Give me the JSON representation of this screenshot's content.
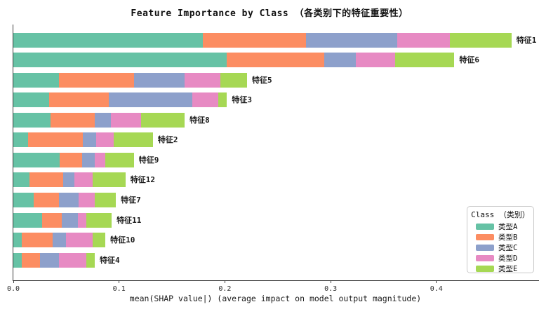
{
  "title": "Feature Importance by Class （各类别下的特征重要性）",
  "chart_data": {
    "type": "bar",
    "orientation": "horizontal",
    "stacked": true,
    "title": "Feature Importance by Class （各类别下的特征重要性）",
    "categories": [
      "特征1",
      "特征6",
      "特征5",
      "特征3",
      "特征8",
      "特征2",
      "特征9",
      "特征12",
      "特征7",
      "特征11",
      "特征10",
      "特征4"
    ],
    "series": [
      {
        "name": "类型A",
        "color": "#66c2a5",
        "values": [
          0.179,
          0.202,
          0.043,
          0.034,
          0.035,
          0.014,
          0.044,
          0.015,
          0.019,
          0.027,
          0.008,
          0.008
        ]
      },
      {
        "name": "类型B",
        "color": "#fc8d62",
        "values": [
          0.098,
          0.092,
          0.071,
          0.056,
          0.042,
          0.052,
          0.021,
          0.032,
          0.024,
          0.019,
          0.029,
          0.017
        ]
      },
      {
        "name": "类型C",
        "color": "#8da0cb",
        "values": [
          0.086,
          0.03,
          0.048,
          0.079,
          0.015,
          0.012,
          0.012,
          0.011,
          0.019,
          0.015,
          0.013,
          0.018
        ]
      },
      {
        "name": "类型D",
        "color": "#e78ac3",
        "values": [
          0.05,
          0.037,
          0.034,
          0.025,
          0.029,
          0.017,
          0.01,
          0.017,
          0.015,
          0.008,
          0.025,
          0.026
        ]
      },
      {
        "name": "类型E",
        "color": "#a6d854",
        "values": [
          0.058,
          0.056,
          0.025,
          0.008,
          0.041,
          0.037,
          0.027,
          0.031,
          0.02,
          0.024,
          0.012,
          0.008
        ]
      }
    ],
    "totals": [
      0.471,
      0.417,
      0.221,
      0.202,
      0.162,
      0.132,
      0.114,
      0.106,
      0.097,
      0.093,
      0.087,
      0.077
    ],
    "xlabel": "mean(SHAP value|) (average impact on model output magnitude)",
    "xtick_labels": [
      "0.0",
      "0.1",
      "0.2",
      "0.3",
      "0.4"
    ],
    "xtick_values": [
      0.0,
      0.1,
      0.2,
      0.3,
      0.4
    ],
    "xlim": [
      0.0,
      0.497
    ],
    "grid": false,
    "legend": {
      "title": "Class （类别）",
      "position": "lower-right",
      "entries": [
        {
          "label": "类型A",
          "color": "#66c2a5"
        },
        {
          "label": "类型B",
          "color": "#fc8d62"
        },
        {
          "label": "类型C",
          "color": "#8da0cb"
        },
        {
          "label": "类型D",
          "color": "#e78ac3"
        },
        {
          "label": "类型E",
          "color": "#a6d854"
        }
      ]
    }
  }
}
